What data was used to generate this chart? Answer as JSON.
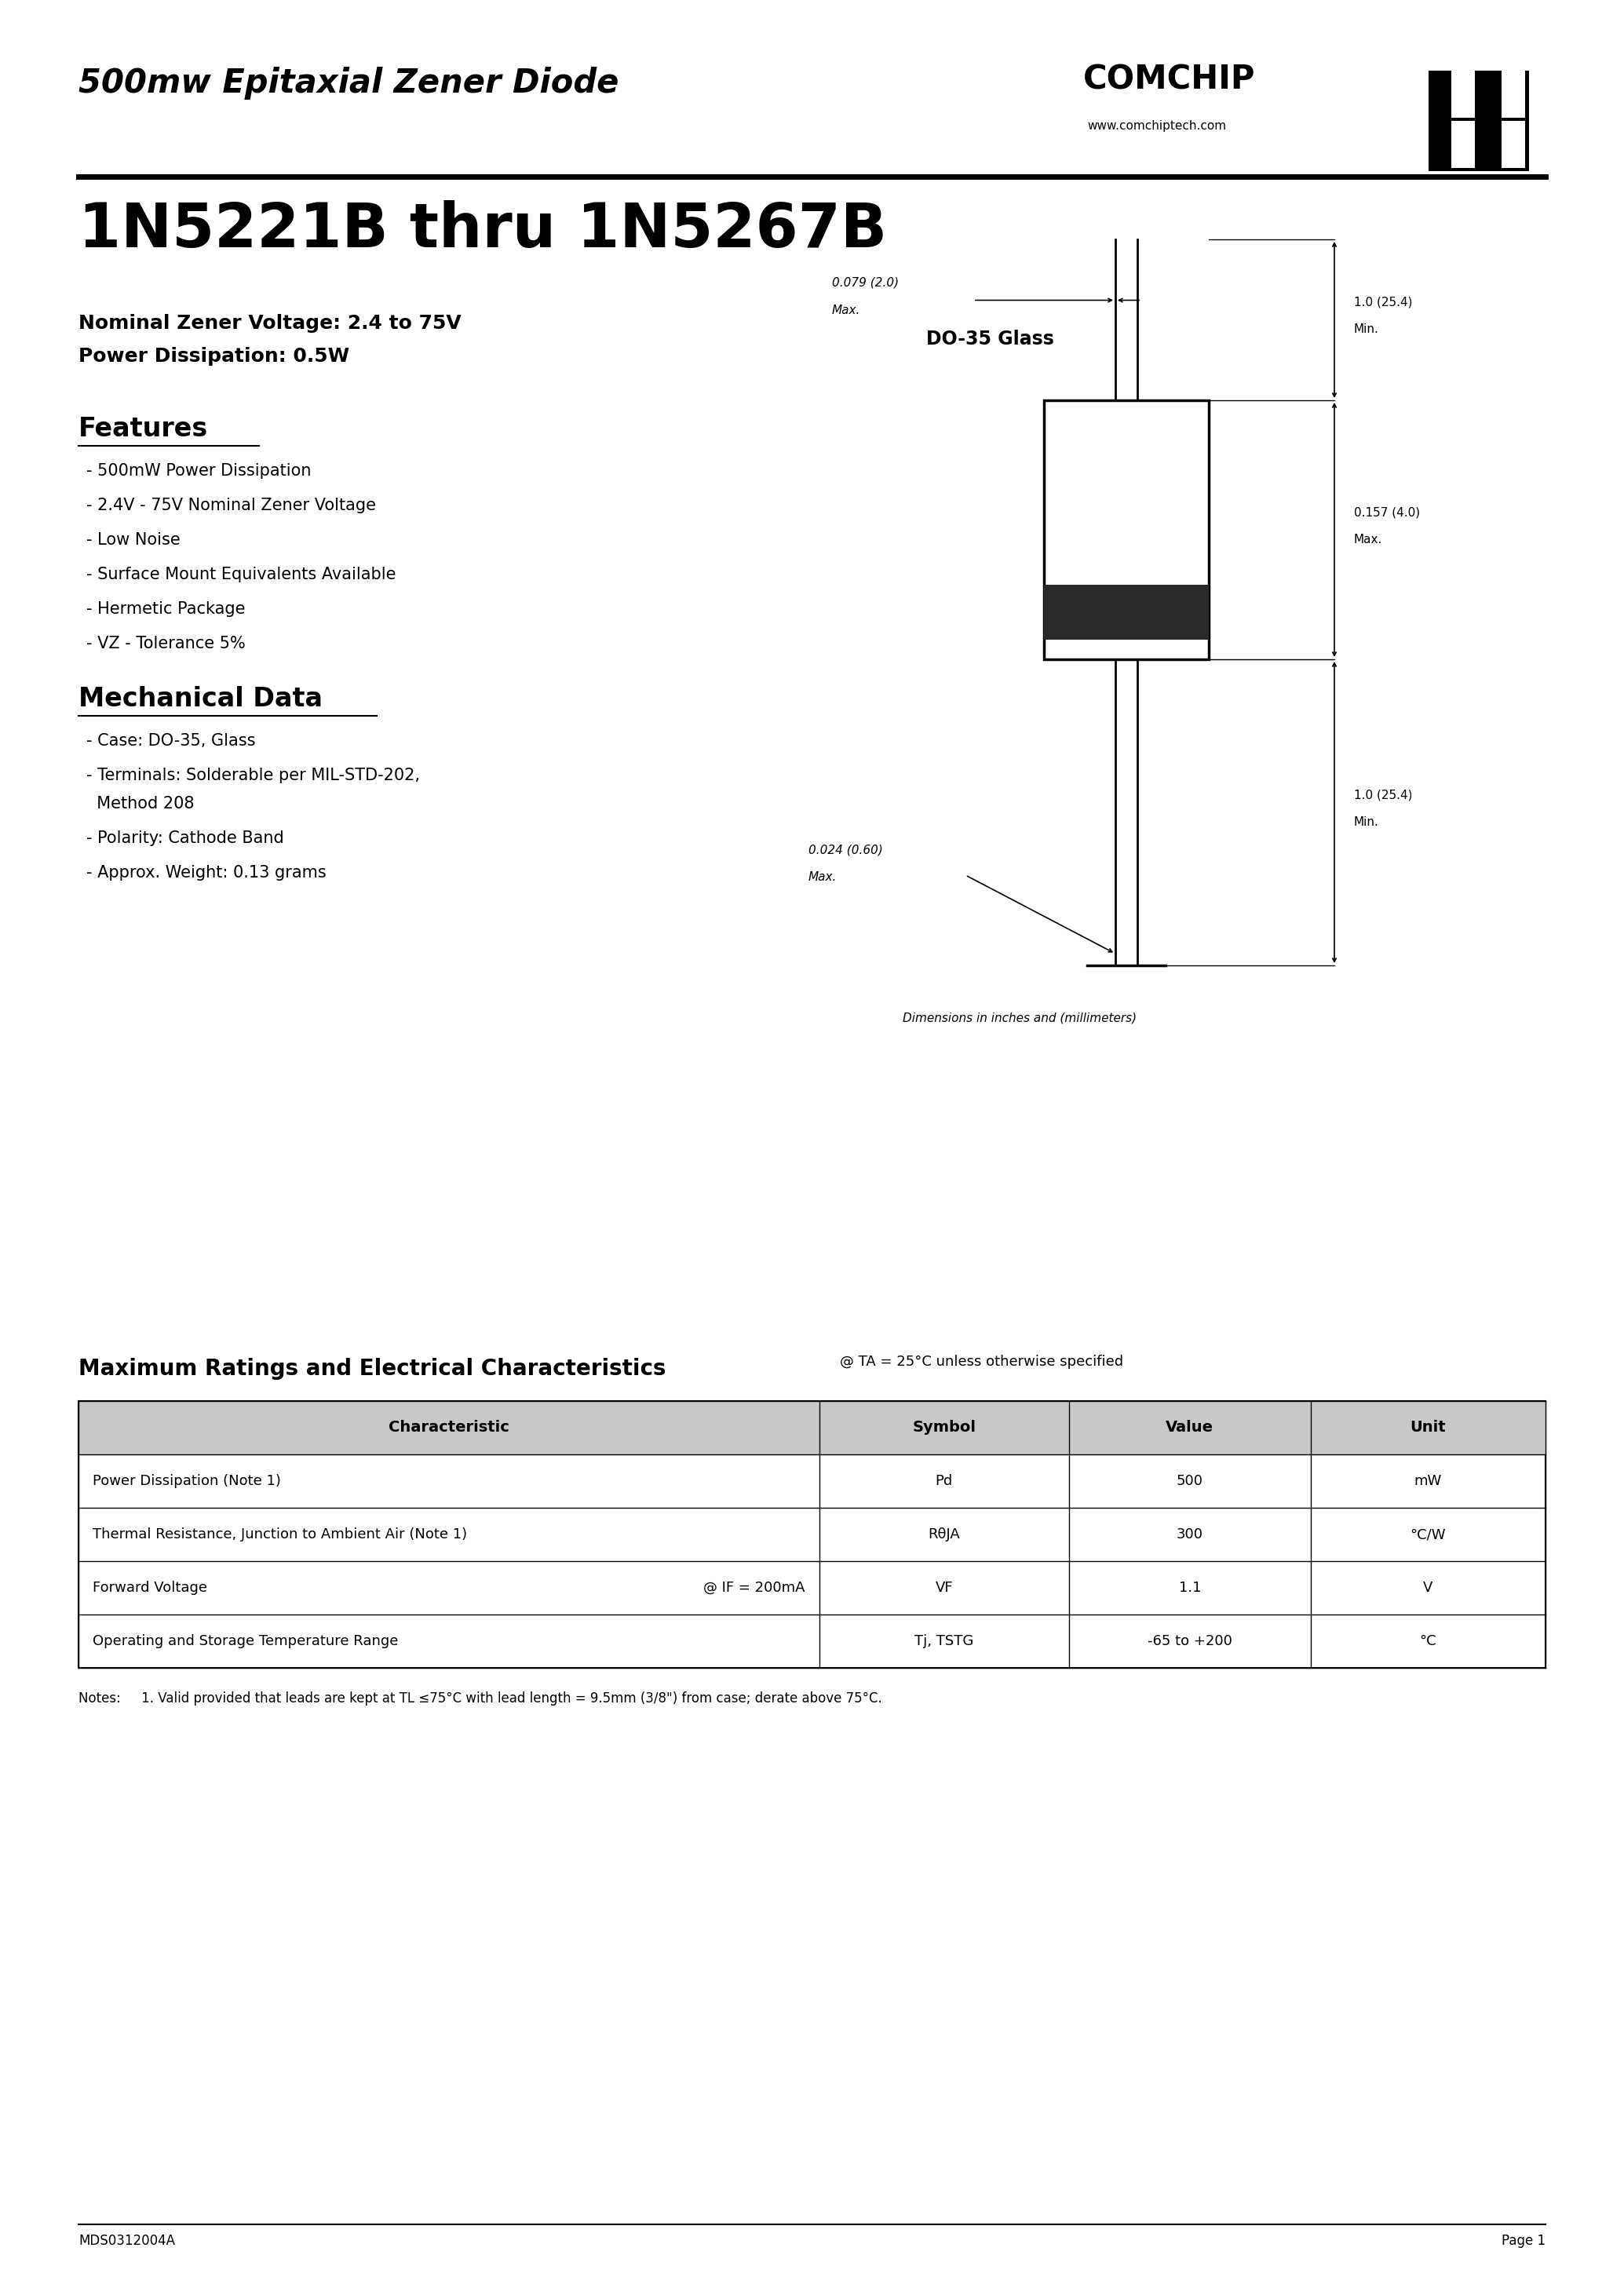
{
  "title_header": "500mw Epitaxial Zener Diode",
  "part_number": "1N5221B thru 1N5267B",
  "nominal_voltage": "Nominal Zener Voltage: 2.4 to 75V",
  "power_dissipation": "Power Dissipation: 0.5W",
  "company": "COMCHIP",
  "website": "www.comchiptech.com",
  "features_title": "Features",
  "features": [
    "- 500mW Power Dissipation",
    "- 2.4V - 75V Nominal Zener Voltage",
    "- Low Noise",
    "- Surface Mount Equivalents Available",
    "- Hermetic Package",
    "- VZ - Tolerance 5%"
  ],
  "mech_title": "Mechanical Data",
  "mech_data": [
    "- Case: DO-35, Glass",
    "- Terminals: Solderable per MIL-STD-202,",
    "  Method 208",
    "- Polarity: Cathode Band",
    "- Approx. Weight: 0.13 grams"
  ],
  "package_title": "DO-35 Glass",
  "dim_note": "Dimensions in inches and (millimeters)",
  "table_title": "Maximum Ratings and Electrical Characteristics",
  "table_subtitle": "@ TA = 25°C unless otherwise specified",
  "table_headers": [
    "Characteristic",
    "Symbol",
    "Value",
    "Unit"
  ],
  "table_rows": [
    [
      "Power Dissipation (Note 1)",
      "Pd",
      "500",
      "mW"
    ],
    [
      "Thermal Resistance, Junction to Ambient Air (Note 1)",
      "RθJA",
      "300",
      "°C/W"
    ],
    [
      "Forward Voltage",
      "VF",
      "1.1",
      "V"
    ],
    [
      "Operating and Storage Temperature Range",
      "Tj, TSTG",
      "-65 to +200",
      "°C"
    ]
  ],
  "row3_suffix": "@ IF = 200mA",
  "notes": "Notes:     1. Valid provided that leads are kept at TL ≤75°C with lead length = 9.5mm (3/8\") from case; derate above 75°C.",
  "footer_left": "MDS0312004A",
  "footer_right": "Page 1",
  "bg_color": "#ffffff",
  "text_color": "#000000"
}
